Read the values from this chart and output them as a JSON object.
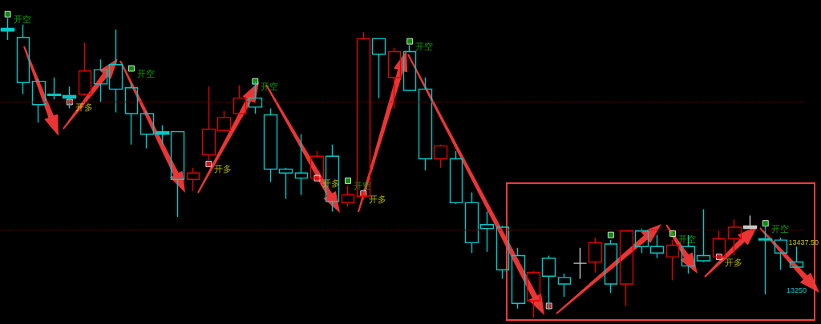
{
  "chart_data": {
    "type": "candlestick",
    "categories": [
      null,
      null,
      null,
      null,
      null,
      null,
      null,
      null,
      null,
      null,
      null,
      null,
      null,
      null,
      null,
      null,
      null,
      null,
      null,
      null,
      null,
      null,
      null,
      null,
      null,
      null,
      null,
      null,
      null,
      null,
      null,
      null,
      null,
      null,
      null,
      null,
      null,
      null,
      null,
      null,
      null,
      null,
      null,
      null,
      null,
      null,
      null,
      null,
      null,
      null,
      null,
      null
    ],
    "ohlc": [
      [
        14265,
        14305,
        14220,
        14255
      ],
      [
        14230,
        14280,
        14010,
        14055
      ],
      [
        14060,
        14070,
        13900,
        13970
      ],
      [
        14010,
        14075,
        13990,
        14005
      ],
      [
        14005,
        14040,
        13955,
        13995
      ],
      [
        14010,
        14210,
        14005,
        14100
      ],
      [
        14105,
        14145,
        13980,
        14050
      ],
      [
        14125,
        14260,
        13940,
        14030
      ],
      [
        14035,
        14050,
        13815,
        13935
      ],
      [
        13935,
        13945,
        13800,
        13855
      ],
      [
        13865,
        13890,
        13815,
        13855
      ],
      [
        13865,
        13865,
        13535,
        13680
      ],
      [
        13680,
        13725,
        13635,
        13705
      ],
      [
        13775,
        14040,
        13755,
        13875
      ],
      [
        13870,
        13945,
        13865,
        13920
      ],
      [
        13935,
        14045,
        13935,
        13995
      ],
      [
        13995,
        14060,
        13935,
        13960
      ],
      [
        13930,
        13955,
        13670,
        13720
      ],
      [
        13720,
        13725,
        13605,
        13705
      ],
      [
        13705,
        13855,
        13620,
        13685
      ],
      [
        13685,
        13790,
        13680,
        13770
      ],
      [
        13770,
        13815,
        13555,
        13595
      ],
      [
        13590,
        13655,
        13575,
        13620
      ],
      [
        13615,
        14250,
        13600,
        14225
      ],
      [
        14225,
        14225,
        13995,
        14165
      ],
      [
        14075,
        14190,
        13955,
        14175
      ],
      [
        14175,
        14200,
        14025,
        14025
      ],
      [
        14030,
        14075,
        13715,
        13760
      ],
      [
        13760,
        13815,
        13725,
        13810
      ],
      [
        13760,
        13790,
        13585,
        13590
      ],
      [
        13590,
        13630,
        13395,
        13435
      ],
      [
        13505,
        13555,
        13400,
        13490
      ],
      [
        13495,
        13500,
        13295,
        13330
      ],
      [
        13385,
        13415,
        13180,
        13200
      ],
      [
        13210,
        13325,
        13145,
        13320
      ],
      [
        13375,
        13385,
        13175,
        13305
      ],
      [
        13300,
        13315,
        13225,
        13275
      ],
      [
        13355,
        13415,
        13295,
        13355
      ],
      [
        13360,
        13455,
        13320,
        13435
      ],
      [
        13430,
        13445,
        13240,
        13275
      ],
      [
        13275,
        13480,
        13190,
        13480
      ],
      [
        13480,
        13490,
        13395,
        13420
      ],
      [
        13420,
        13465,
        13375,
        13395
      ],
      [
        13380,
        13445,
        13290,
        13425
      ],
      [
        13420,
        13465,
        13315,
        13345
      ],
      [
        13385,
        13565,
        13360,
        13365
      ],
      [
        13380,
        13480,
        13380,
        13450
      ],
      [
        13450,
        13525,
        13385,
        13495
      ],
      [
        13490,
        13540,
        13490,
        13500
      ],
      [
        13450,
        13500,
        13235,
        13445
      ],
      [
        13445,
        13455,
        13330,
        13395
      ],
      [
        13360,
        13420,
        13340,
        13340
      ]
    ],
    "colors": [
      "#00c8c8",
      "#00c8c8",
      "#00c8c8",
      "#00c8c8",
      "#00c8c8",
      "#e00000",
      "#00c8c8",
      "#00c8c8",
      "#00c8c8",
      "#00c8c8",
      "#00c8c8",
      "#00c8c8",
      "#e00000",
      "#e00000",
      "#e00000",
      "#e00000",
      "#00c8c8",
      "#00c8c8",
      "#00c8c8",
      "#00c8c8",
      "#e00000",
      "#00c8c8",
      "#e00000",
      "#e00000",
      "#00c8c8",
      "#e00000",
      "#00c8c8",
      "#00c8c8",
      "#e00000",
      "#00c8c8",
      "#00c8c8",
      "#00c8c8",
      "#00c8c8",
      "#00c8c8",
      "#e00000",
      "#00c8c8",
      "#00c8c8",
      "#c8c8c8",
      "#e00000",
      "#00c8c8",
      "#e00000",
      "#00c8c8",
      "#00c8c8",
      "#e00000",
      "#00c8c8",
      "#00c8c8",
      "#e00000",
      "#e00000",
      "#c8c8c8",
      "#00c8c8",
      "#00c8c8",
      "#00c8c8"
    ],
    "series": [
      {
        "type": "scatter",
        "color": "#10b010",
        "values": [
          14320,
          null,
          null,
          null,
          null,
          null,
          null,
          null,
          14110,
          null,
          null,
          null,
          null,
          null,
          null,
          null,
          14060,
          null,
          null,
          null,
          null,
          null,
          13675,
          null,
          null,
          null,
          14215,
          null,
          null,
          null,
          null,
          null,
          null,
          null,
          null,
          null,
          null,
          null,
          null,
          13465,
          null,
          null,
          null,
          13470,
          null,
          null,
          null,
          null,
          null,
          13510,
          null,
          null
        ],
        "value_labels": [
          "开空",
          null,
          null,
          null,
          null,
          null,
          null,
          null,
          "开空",
          null,
          null,
          null,
          null,
          null,
          null,
          null,
          "开空",
          null,
          null,
          null,
          null,
          null,
          "开空",
          null,
          null,
          null,
          "开空",
          null,
          null,
          null,
          null,
          null,
          null,
          null,
          null,
          null,
          null,
          null,
          null,
          null,
          null,
          null,
          null,
          "开空",
          null,
          null,
          null,
          null,
          null,
          "开空",
          null,
          null
        ]
      },
      {
        "type": "scatter",
        "color": "#ff2020",
        "values": [
          null,
          null,
          null,
          null,
          13980,
          null,
          null,
          null,
          null,
          null,
          null,
          null,
          null,
          13740,
          null,
          null,
          null,
          null,
          null,
          null,
          13685,
          null,
          null,
          13625,
          null,
          null,
          null,
          null,
          null,
          null,
          null,
          null,
          null,
          null,
          null,
          13190,
          null,
          null,
          null,
          null,
          null,
          null,
          null,
          null,
          null,
          null,
          13380,
          null,
          null,
          null,
          null,
          null
        ],
        "value_labels": [
          null,
          null,
          null,
          null,
          "开多",
          null,
          null,
          null,
          null,
          null,
          null,
          null,
          null,
          "开多",
          null,
          null,
          null,
          null,
          null,
          null,
          "开多",
          null,
          null,
          "开多",
          null,
          null,
          null,
          null,
          null,
          null,
          null,
          null,
          null,
          null,
          null,
          null,
          null,
          null,
          null,
          null,
          null,
          null,
          null,
          null,
          null,
          null,
          "开多",
          null,
          null,
          null,
          null,
          null
        ]
      }
    ],
    "marker": "square",
    "ylim": [
      13120,
      14375
    ],
    "yticks": [
      {
        "value": 13437.5,
        "label": "13437.50"
      },
      13250
    ],
    "tick_labels": "y",
    "ref_lines": [
      {
        "axis": "y",
        "value": 13980,
        "color": "#7a0000",
        "line_style": "dotted"
      },
      {
        "axis": "y",
        "value": 13485,
        "color": "#7a0000",
        "line_style": "dotted"
      }
    ]
  }
}
